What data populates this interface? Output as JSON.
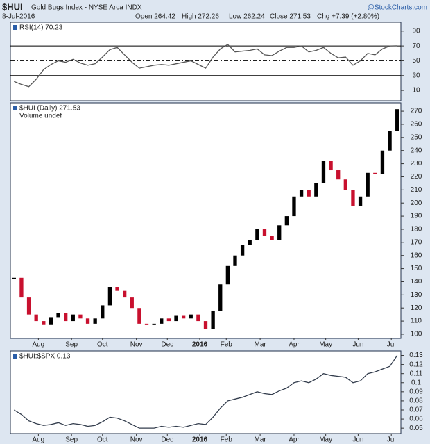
{
  "header": {
    "symbol": "$HUI",
    "name": "Gold Bugs Index - NYSE Arca INDX",
    "source": "@StockCharts.com",
    "date": "8-Jul-2016",
    "open": "Open 264.42",
    "high": "High 272.26",
    "low": "Low 262.24",
    "close": "Close 271.53",
    "change": "Chg +7.39 (+2.80%)"
  },
  "chart_data": [
    {
      "type": "line",
      "series": [
        {
          "name": "RSI(14) 70.23",
          "color": "#555555",
          "values": [
            22,
            18,
            15,
            25,
            38,
            45,
            50,
            48,
            52,
            47,
            44,
            46,
            55,
            65,
            68,
            58,
            48,
            40,
            42,
            44,
            45,
            44,
            46,
            48,
            50,
            45,
            40,
            55,
            66,
            72,
            62,
            63,
            64,
            66,
            58,
            57,
            63,
            68,
            68,
            70,
            62,
            64,
            68,
            60,
            54,
            55,
            44,
            50,
            60,
            58,
            66,
            70,
            70.23
          ]
        }
      ],
      "xlim": [
        -0.5,
        52.5
      ],
      "ylim": [
        -4,
        102
      ],
      "yticks": [
        10,
        30,
        50,
        70,
        90
      ],
      "levels": [
        30,
        50,
        70
      ]
    },
    {
      "type": "candlestick",
      "series": [
        {
          "name": "$HUI (Daily) 271.53",
          "values": [
            143,
            128,
            115,
            110,
            107,
            113,
            116,
            110,
            115,
            112,
            108,
            112,
            122,
            136,
            133,
            128,
            120,
            108,
            107,
            108,
            112,
            110,
            114,
            112,
            115,
            110,
            104,
            118,
            138,
            152,
            160,
            168,
            172,
            180,
            175,
            172,
            183,
            190,
            205,
            210,
            205,
            215,
            232,
            225,
            218,
            210,
            198,
            205,
            223,
            222,
            240,
            255,
            271.53
          ]
        }
      ],
      "volume_label": "Volume undef",
      "up_color": "#000000",
      "down_color": "#c8102e",
      "xlim": [
        -0.5,
        52.5
      ],
      "ylim": [
        96.8,
        276.4
      ],
      "yticks": [
        100,
        110,
        120,
        130,
        140,
        150,
        160,
        170,
        180,
        190,
        200,
        210,
        220,
        230,
        240,
        250,
        260,
        270
      ],
      "xticks": [
        {
          "value": 3.3,
          "label": "Aug"
        },
        {
          "value": 7.8,
          "label": "Sep"
        },
        {
          "value": 12.0,
          "label": "Oct"
        },
        {
          "value": 16.6,
          "label": "Nov"
        },
        {
          "value": 20.8,
          "label": "Dec"
        },
        {
          "value": 25.2,
          "label": "2016"
        },
        {
          "value": 28.8,
          "label": "Feb"
        },
        {
          "value": 33.4,
          "label": "Mar"
        },
        {
          "value": 38.0,
          "label": "Apr"
        },
        {
          "value": 42.3,
          "label": "May"
        },
        {
          "value": 46.7,
          "label": "Jun"
        },
        {
          "value": 51.2,
          "label": "Jul"
        }
      ]
    },
    {
      "type": "line",
      "series": [
        {
          "name": "$HUI:$SPX 0.13",
          "color": "#333d4d",
          "values": [
            0.07,
            0.065,
            0.058,
            0.055,
            0.053,
            0.054,
            0.056,
            0.053,
            0.055,
            0.054,
            0.052,
            0.053,
            0.057,
            0.062,
            0.061,
            0.058,
            0.054,
            0.05,
            0.05,
            0.05,
            0.052,
            0.051,
            0.052,
            0.051,
            0.053,
            0.055,
            0.054,
            0.062,
            0.072,
            0.08,
            0.082,
            0.084,
            0.087,
            0.09,
            0.088,
            0.087,
            0.091,
            0.094,
            0.1,
            0.102,
            0.1,
            0.104,
            0.11,
            0.108,
            0.107,
            0.106,
            0.1,
            0.102,
            0.11,
            0.112,
            0.115,
            0.118,
            0.13
          ]
        }
      ],
      "xlim": [
        -0.5,
        52.5
      ],
      "ylim": [
        0.044,
        0.135
      ],
      "yticks": [
        0.05,
        0.06,
        0.07,
        0.08,
        0.09,
        0.1,
        0.11,
        0.12,
        0.13
      ],
      "xticks": [
        {
          "value": 3.3,
          "label": "Aug"
        },
        {
          "value": 7.8,
          "label": "Sep"
        },
        {
          "value": 12.0,
          "label": "Oct"
        },
        {
          "value": 16.6,
          "label": "Nov"
        },
        {
          "value": 20.8,
          "label": "Dec"
        },
        {
          "value": 25.2,
          "label": "2016"
        },
        {
          "value": 28.8,
          "label": "Feb"
        },
        {
          "value": 33.4,
          "label": "Mar"
        },
        {
          "value": 38.0,
          "label": "Apr"
        },
        {
          "value": 42.3,
          "label": "May"
        },
        {
          "value": 46.7,
          "label": "Jun"
        },
        {
          "value": 51.2,
          "label": "Jul"
        }
      ]
    }
  ]
}
